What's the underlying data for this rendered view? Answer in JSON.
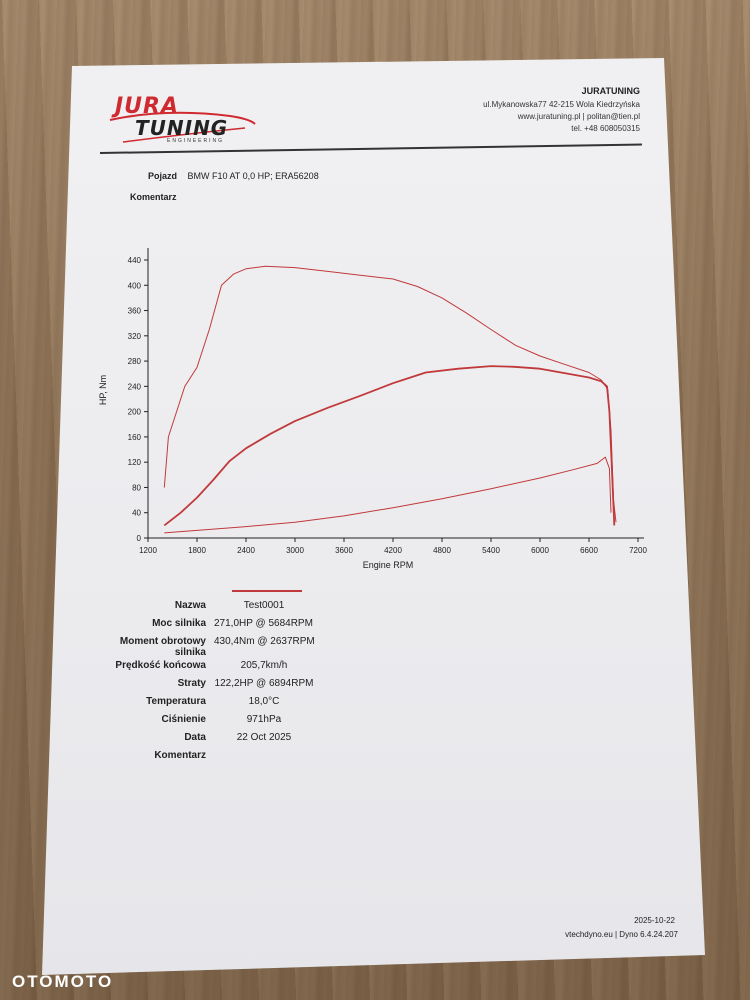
{
  "company": {
    "logo_text_top": "JURA",
    "logo_text_bottom": "TUNING",
    "logo_tagline": "ENGINEERING",
    "name": "JURATUNING",
    "address": "ul.Mykanowska77 42-215 Wola Kiedrzyńska",
    "web_email": "www.juratuning.pl | politan@tien.pl",
    "phone": "tel. +48 608050315"
  },
  "vehicle": {
    "label": "Pojazd",
    "value": "BMW F10 AT 0,0 HP; ERA56208",
    "comment_label": "Komentarz"
  },
  "results": [
    {
      "label": "Nazwa",
      "value": "Test0001"
    },
    {
      "label": "Moc silnika",
      "value": "271,0HP @ 5684RPM"
    },
    {
      "label": "Moment obrotowy silnika",
      "value": "430,4Nm @ 2637RPM"
    },
    {
      "label": "Prędkość końcowa",
      "value": "205,7km/h"
    },
    {
      "label": "Straty",
      "value": "122,2HP @ 6894RPM"
    },
    {
      "label": "Temperatura",
      "value": "18,0°C"
    },
    {
      "label": "Ciśnienie",
      "value": "971hPa"
    },
    {
      "label": "Data",
      "value": "22 Oct 2025"
    },
    {
      "label": "Komentarz",
      "value": ""
    }
  ],
  "footer": {
    "date": "2025-10-22",
    "software": "vtechdyno.eu | Dyno 6.4.24.207"
  },
  "watermark": "OTOMOTO",
  "colors": {
    "curve": "#c0393b",
    "logo": "#cf2a2f"
  },
  "chart_data": {
    "type": "line",
    "xlabel": "Engine RPM",
    "ylabel": "HP, Nm",
    "xlim": [
      1200,
      7200
    ],
    "ylim": [
      0,
      440
    ],
    "x_ticks": [
      1200,
      1800,
      2400,
      3000,
      3600,
      4200,
      4800,
      5400,
      6000,
      6600,
      7200
    ],
    "y_ticks": [
      0,
      40,
      80,
      120,
      160,
      200,
      240,
      280,
      320,
      360,
      400,
      440
    ],
    "grid": false,
    "series": [
      {
        "name": "",
        "points": [
          [
            1400,
            80
          ],
          [
            1450,
            160
          ],
          [
            1550,
            200
          ],
          [
            1650,
            240
          ],
          [
            1800,
            270
          ],
          [
            1950,
            330
          ],
          [
            2100,
            400
          ],
          [
            2250,
            418
          ],
          [
            2400,
            426
          ],
          [
            2637,
            430
          ],
          [
            3000,
            428
          ],
          [
            3400,
            422
          ],
          [
            3800,
            416
          ],
          [
            4200,
            410
          ],
          [
            4500,
            398
          ],
          [
            4800,
            380
          ],
          [
            5100,
            356
          ],
          [
            5400,
            330
          ],
          [
            5700,
            305
          ],
          [
            6000,
            288
          ],
          [
            6300,
            275
          ],
          [
            6600,
            262
          ],
          [
            6750,
            250
          ],
          [
            6830,
            235
          ],
          [
            6870,
            170
          ],
          [
            6900,
            60
          ],
          [
            6930,
            25
          ]
        ]
      },
      {
        "name": "",
        "points": [
          [
            1400,
            20
          ],
          [
            1600,
            40
          ],
          [
            1800,
            64
          ],
          [
            2000,
            92
          ],
          [
            2200,
            122
          ],
          [
            2400,
            142
          ],
          [
            2700,
            165
          ],
          [
            3000,
            185
          ],
          [
            3400,
            206
          ],
          [
            3800,
            225
          ],
          [
            4200,
            245
          ],
          [
            4600,
            262
          ],
          [
            5000,
            268
          ],
          [
            5400,
            272
          ],
          [
            5684,
            271
          ],
          [
            6000,
            268
          ],
          [
            6300,
            261
          ],
          [
            6600,
            254
          ],
          [
            6750,
            248
          ],
          [
            6820,
            240
          ],
          [
            6850,
            200
          ],
          [
            6880,
            110
          ],
          [
            6910,
            20
          ]
        ]
      },
      {
        "name": "",
        "points": [
          [
            1400,
            8
          ],
          [
            1800,
            12
          ],
          [
            2400,
            18
          ],
          [
            3000,
            25
          ],
          [
            3600,
            35
          ],
          [
            4200,
            48
          ],
          [
            4800,
            62
          ],
          [
            5400,
            78
          ],
          [
            6000,
            95
          ],
          [
            6400,
            108
          ],
          [
            6700,
            118
          ],
          [
            6800,
            128
          ],
          [
            6850,
            110
          ],
          [
            6870,
            40
          ]
        ]
      }
    ]
  }
}
